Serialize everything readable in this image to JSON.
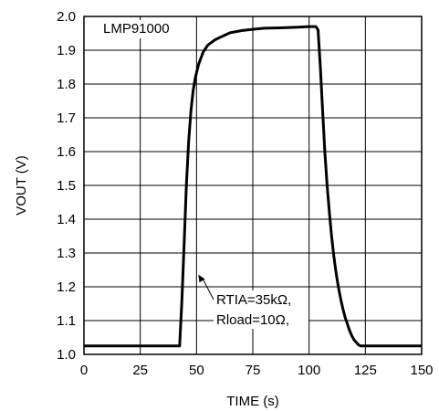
{
  "chart_data": {
    "type": "line",
    "title": "",
    "xlabel": "TIME (s)",
    "ylabel": "VOUT (V)",
    "xlim": [
      0,
      150
    ],
    "ylim": [
      1.0,
      2.0
    ],
    "x_ticks": [
      0,
      25,
      50,
      75,
      100,
      125,
      150
    ],
    "y_ticks": [
      1.0,
      1.1,
      1.2,
      1.3,
      1.4,
      1.5,
      1.6,
      1.7,
      1.8,
      1.9,
      2.0
    ],
    "x_tick_labels": [
      "0",
      "25",
      "50",
      "75",
      "100",
      "125",
      "150"
    ],
    "y_tick_labels": [
      "1.0",
      "1.1",
      "1.2",
      "1.3",
      "1.4",
      "1.5",
      "1.6",
      "1.7",
      "1.8",
      "1.9",
      "2.0"
    ],
    "grid": true,
    "legend": {
      "position": "top-left",
      "entries": [
        "LMP91000"
      ]
    },
    "series": [
      {
        "name": "LMP91000",
        "color": "#000000",
        "x": [
          0,
          10,
          20,
          30,
          40,
          42.5,
          43.5,
          44.5,
          45.5,
          46.5,
          47.5,
          48.5,
          49.5,
          51,
          53,
          55,
          58,
          61,
          65,
          70,
          75,
          80,
          85,
          90,
          95,
          100,
          103,
          104,
          105,
          106,
          107,
          108,
          109,
          110,
          111,
          112,
          113,
          114,
          115,
          116,
          117,
          118,
          119,
          120,
          121,
          122,
          123,
          125,
          130,
          140,
          150
        ],
        "y": [
          1.025,
          1.025,
          1.025,
          1.025,
          1.025,
          1.025,
          1.16,
          1.33,
          1.5,
          1.63,
          1.72,
          1.78,
          1.82,
          1.86,
          1.895,
          1.915,
          1.93,
          1.94,
          1.952,
          1.958,
          1.962,
          1.965,
          1.966,
          1.967,
          1.968,
          1.97,
          1.97,
          1.96,
          1.85,
          1.72,
          1.6,
          1.5,
          1.42,
          1.35,
          1.29,
          1.24,
          1.2,
          1.165,
          1.135,
          1.11,
          1.09,
          1.07,
          1.055,
          1.043,
          1.035,
          1.028,
          1.025,
          1.025,
          1.025,
          1.025,
          1.025
        ]
      }
    ],
    "annotations": [
      {
        "lines": [
          "RTIA=35kΩ,",
          "Rload=10Ω,"
        ],
        "arrow_to": {
          "x": 50,
          "y": 1.22
        }
      }
    ]
  },
  "colors": {
    "line": "#000000",
    "grid": "#000000",
    "background": "#ffffff"
  }
}
